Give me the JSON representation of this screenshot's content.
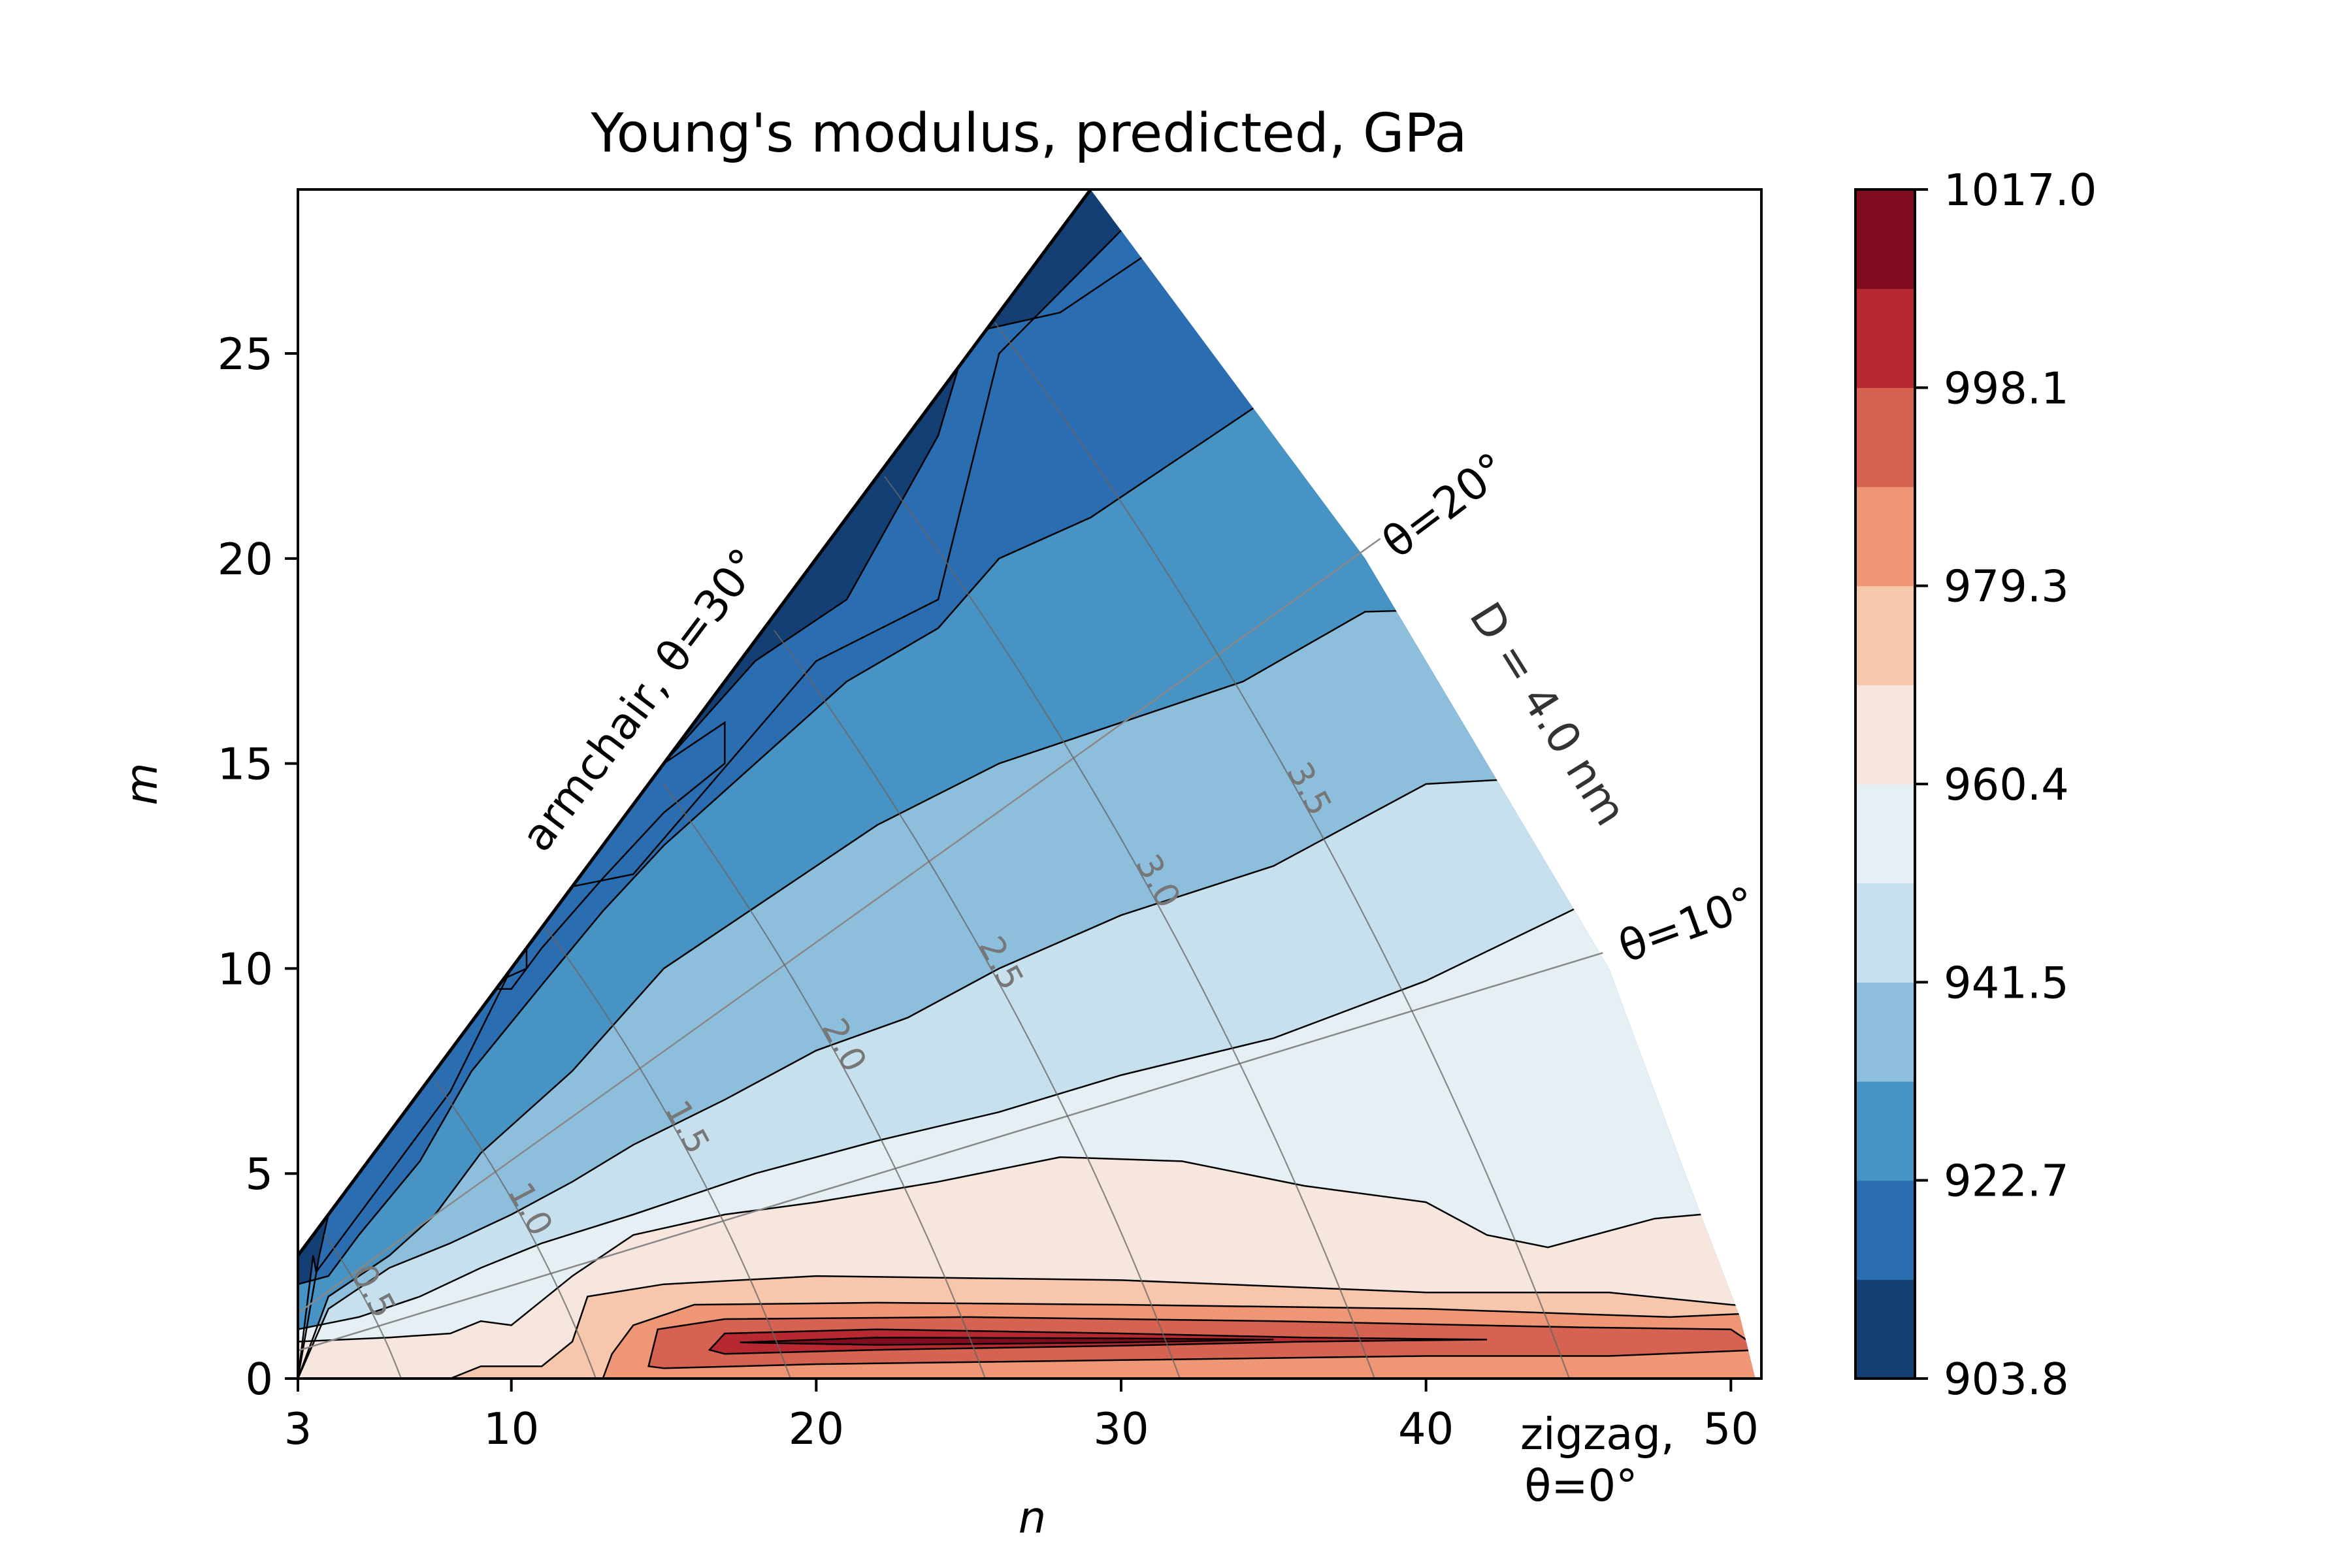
{
  "chart_data": {
    "type": "contour",
    "title": "Young's modulus, predicted, GPa",
    "xlabel": "n",
    "ylabel": "m",
    "xlim": [
      3,
      51
    ],
    "ylim": [
      0,
      29
    ],
    "x_ticks": [
      3,
      10,
      20,
      30,
      40,
      50
    ],
    "y_ticks": [
      0,
      5,
      10,
      15,
      20,
      25
    ],
    "colorbar": {
      "ticks": [
        "1017.0",
        "998.1",
        "979.3",
        "960.4",
        "941.5",
        "922.7",
        "903.8"
      ],
      "range": [
        903.8,
        1017.0
      ],
      "levels": 12,
      "colormap": "RdBu_r",
      "colors": [
        "#133f74",
        "#2a6db1",
        "#4793c4",
        "#8dbfdd",
        "#c7e0ed",
        "#e6eff4",
        "#f7e6de",
        "#f6c7ac",
        "#ee9675",
        "#d66252",
        "#b72830",
        "#7f0d1f"
      ]
    },
    "bands": [
      {
        "level": "941.5–960.4",
        "region": "low-m wedge, m ≈ 3–9"
      },
      {
        "level": "960.4–979.3",
        "region": "near zigzag, m ≈ 1–6"
      },
      {
        "level": "979.3–1017.0",
        "region": "strip m ≈ 0.5–1.5, n ≈ 13–50, peak n ≈ 16–30"
      },
      {
        "level": "903.8–922.7",
        "region": "along armchair edge"
      }
    ],
    "diameter_contours": [
      {
        "label": "0.5",
        "value": 0.5
      },
      {
        "label": "1.0",
        "value": 1.0
      },
      {
        "label": "1.5",
        "value": 1.5
      },
      {
        "label": "2.0",
        "value": 2.0
      },
      {
        "label": "2.5",
        "value": 2.5
      },
      {
        "label": "3.0",
        "value": 3.0
      },
      {
        "label": "3.5",
        "value": 3.5
      }
    ],
    "diameter_boundary_label": "D = 4.0 nm",
    "angle_lines": [
      {
        "label": "θ=20°",
        "theta": 20
      },
      {
        "label": "θ=10°",
        "theta": 10
      }
    ],
    "edge_labels": {
      "armchair": "armchair, θ=30°",
      "zigzag_line1": "zigzag,",
      "zigzag_line2": "θ=0°"
    }
  }
}
